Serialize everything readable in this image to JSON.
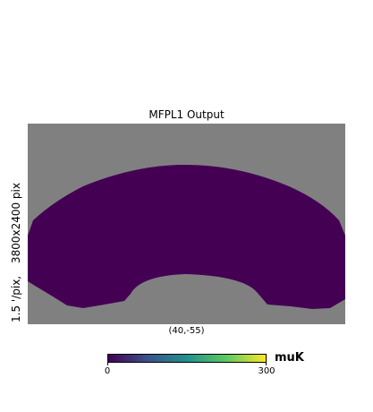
{
  "chart_data": {
    "type": "heatmap",
    "title": "MFPL1 Output",
    "ylabel_parts": [
      "1.5 '/pix,",
      "3800x2400 pix"
    ],
    "center_label": "(40,-55)",
    "colormap": "viridis",
    "background_color": "#808080",
    "fill_color": "#440154",
    "colorbar": {
      "min": 0,
      "max": 300,
      "ticks": [
        "0",
        "300"
      ],
      "unit": "muK",
      "colors": [
        "#440154",
        "#3b528b",
        "#21908d",
        "#5dc962",
        "#fde725"
      ]
    }
  }
}
